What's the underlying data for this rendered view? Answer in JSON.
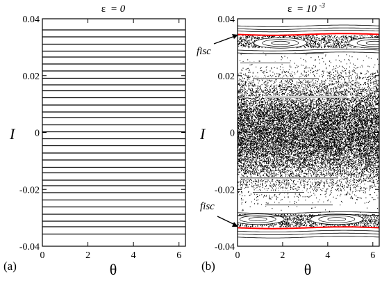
{
  "chart_data": [
    {
      "type": "scatter",
      "panel_label": "(a)",
      "title_symbol": "ε",
      "title_value": "= 0",
      "xlabel": "θ",
      "ylabel": "I",
      "xlim": [
        0,
        6.2832
      ],
      "ylim": [
        -0.04,
        0.04
      ],
      "xticks": [
        "0",
        "2",
        "4",
        "6"
      ],
      "xtick_values": [
        0,
        2,
        4,
        6
      ],
      "yticks": [
        "0.04",
        "0.02",
        "0",
        "-0.02",
        "-0.04"
      ],
      "ytick_values": [
        0.04,
        0.02,
        0,
        -0.02,
        -0.04
      ],
      "invariant_lines_I": [
        -0.0357,
        -0.0332,
        -0.0312,
        -0.0287,
        -0.0262,
        -0.0237,
        -0.0212,
        -0.0187,
        -0.0167,
        -0.0142,
        -0.0122,
        -0.0097,
        -0.0072,
        -0.0047,
        -0.0022,
        0.0002,
        0.0027,
        0.0052,
        0.0072,
        0.0097,
        0.0122,
        0.0147,
        0.0167,
        0.0191,
        0.0216,
        0.0241,
        0.0266,
        0.0286,
        0.0311,
        0.0336,
        0.0361
      ]
    },
    {
      "type": "scatter",
      "panel_label": "(b)",
      "title_symbol": "ε",
      "title_base": "= 10",
      "title_exponent": "-3",
      "xlabel": "θ",
      "ylabel": "I",
      "xlim": [
        0,
        6.2832
      ],
      "ylim": [
        -0.04,
        0.04
      ],
      "xticks": [
        "0",
        "2",
        "4",
        "6"
      ],
      "xtick_values": [
        0,
        2,
        4,
        6
      ],
      "yticks": [
        "0.04",
        "0.02",
        "0",
        "-0.02",
        "-0.04"
      ],
      "ytick_values": [
        0.04,
        0.02,
        0,
        -0.02,
        -0.04
      ],
      "chaotic_sea_I": [
        -0.029,
        0.029
      ],
      "fisc_curves": [
        {
          "I": 0.0345,
          "amplitude": 0.0003,
          "color": "#ff0000"
        },
        {
          "I": -0.0335,
          "amplitude": 0.0003,
          "color": "#ff0000"
        }
      ],
      "annotations": [
        {
          "text": "fisc",
          "target_I": 0.0345
        },
        {
          "text": "fisc",
          "target_I": -0.0335
        }
      ]
    }
  ]
}
